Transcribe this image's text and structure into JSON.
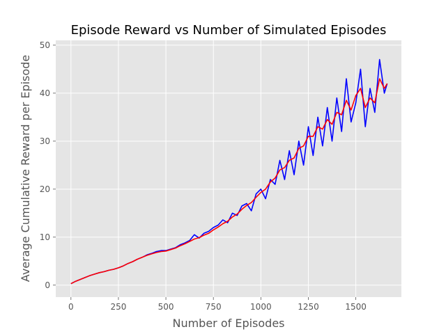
{
  "chart_data": {
    "type": "line",
    "title": "Episode Reward vs Number of Simulated Episodes",
    "xlabel": "Number of Episodes",
    "ylabel": "Average Cumulative Reward per Episode",
    "xlim": [
      -80,
      1740
    ],
    "ylim": [
      -2.5,
      51
    ],
    "xticks": [
      0,
      250,
      500,
      750,
      1000,
      1250,
      1500
    ],
    "yticks": [
      0,
      10,
      20,
      30,
      40,
      50
    ],
    "grid": true,
    "style": "ggplot",
    "colors": {
      "background": "#E5E5E5",
      "grid": "#FFFFFF",
      "tick_text": "#555555"
    },
    "series": [
      {
        "color": "#0000FF",
        "x": [
          0,
          25,
          50,
          75,
          100,
          125,
          150,
          175,
          200,
          225,
          250,
          275,
          300,
          325,
          350,
          375,
          400,
          425,
          450,
          475,
          500,
          525,
          550,
          575,
          600,
          625,
          650,
          675,
          700,
          725,
          750,
          775,
          800,
          825,
          850,
          875,
          900,
          925,
          950,
          975,
          1000,
          1025,
          1050,
          1075,
          1100,
          1125,
          1150,
          1175,
          1200,
          1225,
          1250,
          1275,
          1300,
          1325,
          1350,
          1375,
          1400,
          1425,
          1450,
          1475,
          1500,
          1525,
          1550,
          1575,
          1600,
          1625,
          1650,
          1665
        ],
        "y": [
          0.3,
          0.8,
          1.2,
          1.6,
          2.0,
          2.3,
          2.6,
          2.8,
          3.1,
          3.3,
          3.6,
          4.0,
          4.5,
          4.9,
          5.4,
          5.8,
          6.3,
          6.6,
          7.0,
          7.2,
          7.2,
          7.5,
          7.8,
          8.4,
          8.8,
          9.3,
          10.5,
          9.8,
          10.8,
          11.2,
          12.0,
          12.5,
          13.6,
          13.0,
          15.0,
          14.5,
          16.5,
          17.0,
          15.5,
          19.0,
          20.0,
          18.0,
          22.0,
          21.0,
          26.0,
          22.0,
          28.0,
          23.0,
          30.0,
          25.0,
          33.0,
          27.0,
          35.0,
          29.0,
          37.0,
          30.0,
          39.0,
          32.0,
          43.0,
          34.0,
          38.0,
          45.0,
          33.0,
          41.0,
          36.0,
          47.0,
          40.0,
          42.0
        ]
      },
      {
        "color": "#FF0000",
        "x": [
          0,
          25,
          50,
          75,
          100,
          125,
          150,
          175,
          200,
          225,
          250,
          275,
          300,
          325,
          350,
          375,
          400,
          425,
          450,
          475,
          500,
          525,
          550,
          575,
          600,
          625,
          650,
          675,
          700,
          725,
          750,
          775,
          800,
          825,
          850,
          875,
          900,
          925,
          950,
          975,
          1000,
          1025,
          1050,
          1075,
          1100,
          1125,
          1150,
          1175,
          1200,
          1225,
          1250,
          1275,
          1300,
          1325,
          1350,
          1375,
          1400,
          1425,
          1450,
          1475,
          1500,
          1525,
          1550,
          1575,
          1600,
          1625,
          1650,
          1665
        ],
        "y": [
          0.3,
          0.8,
          1.2,
          1.6,
          2.0,
          2.3,
          2.6,
          2.8,
          3.1,
          3.3,
          3.6,
          4.0,
          4.5,
          4.9,
          5.4,
          5.8,
          6.2,
          6.5,
          6.8,
          7.0,
          7.1,
          7.4,
          7.7,
          8.2,
          8.6,
          9.1,
          9.6,
          9.9,
          10.4,
          10.8,
          11.5,
          12.1,
          12.8,
          13.3,
          14.2,
          14.8,
          15.8,
          16.6,
          17.2,
          18.3,
          19.3,
          20.0,
          21.5,
          22.3,
          24.0,
          24.5,
          26.0,
          26.5,
          28.5,
          29.0,
          31.0,
          31.0,
          33.0,
          32.5,
          34.5,
          33.5,
          36.0,
          35.5,
          38.5,
          36.5,
          39.5,
          41.0,
          37.0,
          39.0,
          38.0,
          43.0,
          41.0,
          42.0
        ]
      }
    ]
  }
}
